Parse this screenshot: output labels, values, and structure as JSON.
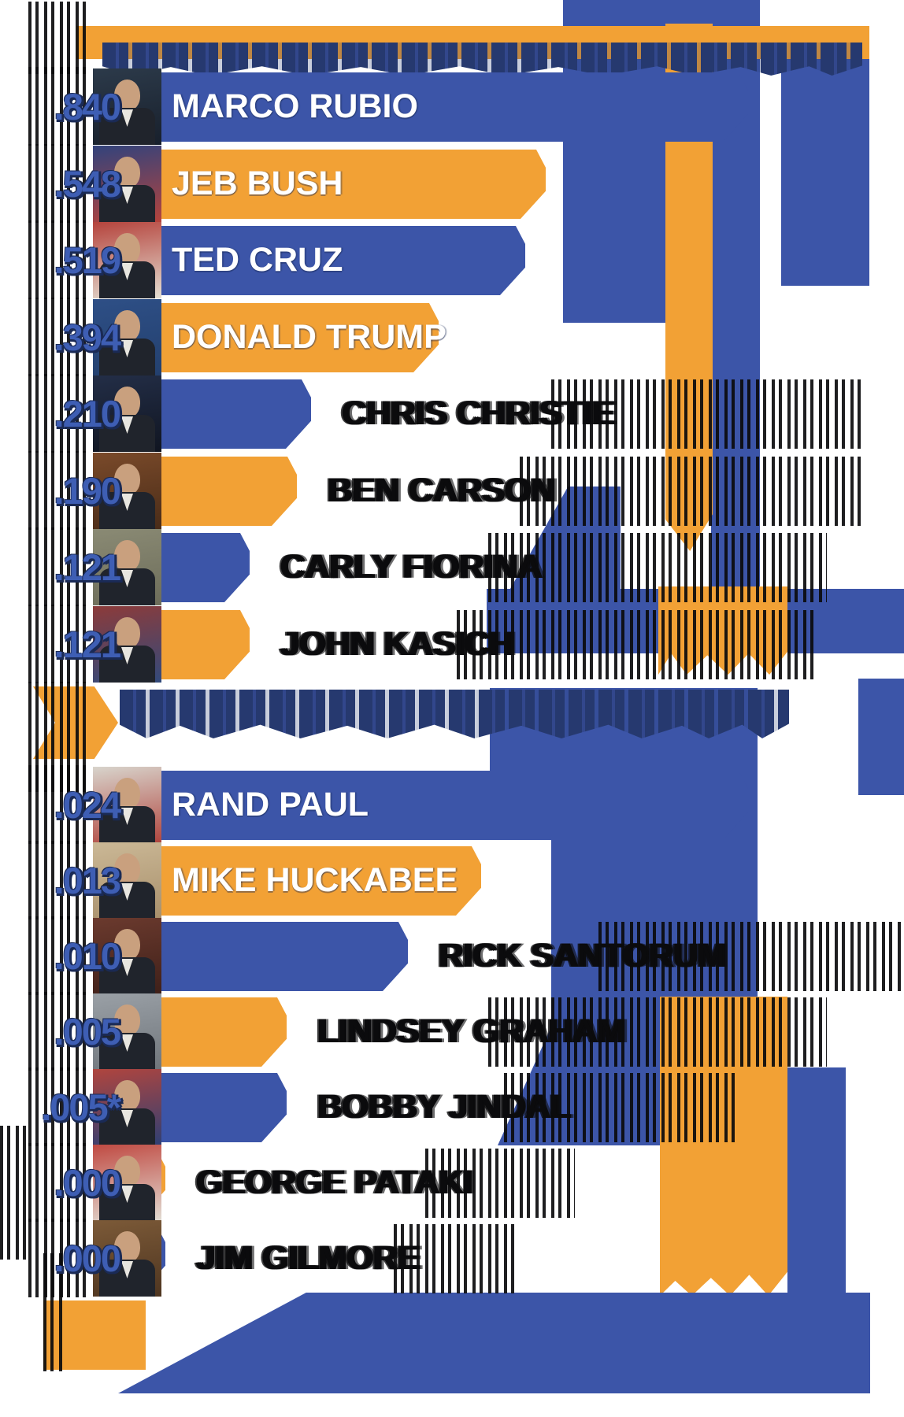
{
  "colors": {
    "accent_orange": "#F2A135",
    "bar_blue": "#3C55A8",
    "value_text_blue": "#3E5EB4",
    "value_outline_navy": "#1A2A55",
    "garbled_text_navy": "#26396F",
    "outside_name_black": "#0B0B0D",
    "inside_name_white": "#FFFFFF",
    "background": "#FFFFFF"
  },
  "garbled_text_regions": [
    "title-banner-text",
    "section-divider-text",
    "footer-text"
  ],
  "sections": [
    {
      "rows": [
        {
          "value_label": ".840",
          "value": 0.84,
          "name": "MARCO RUBIO",
          "bar": "blue",
          "label": "inside",
          "photo_bg": [
            "#2c3a4a",
            "#18202c"
          ]
        },
        {
          "value_label": ".548",
          "value": 0.548,
          "name": "JEB BUSH",
          "bar": "orange",
          "label": "inside",
          "photo_bg": [
            "#32437c",
            "#b5433c"
          ]
        },
        {
          "value_label": ".519",
          "value": 0.519,
          "name": "TED CRUZ",
          "bar": "blue",
          "label": "inside",
          "photo_bg": [
            "#b5433c",
            "#e4ded2"
          ]
        },
        {
          "value_label": ".394",
          "value": 0.394,
          "name": "DONALD TRUMP",
          "bar": "orange",
          "label": "inside",
          "photo_bg": [
            "#2e4f86",
            "#23406e"
          ]
        },
        {
          "value_label": ".210",
          "value": 0.21,
          "name": "CHRIS CHRISTIE",
          "bar": "blue",
          "label": "outside",
          "photo_bg": [
            "#232e47",
            "#101521"
          ]
        },
        {
          "value_label": ".190",
          "value": 0.19,
          "name": "BEN CARSON",
          "bar": "orange",
          "label": "outside",
          "photo_bg": [
            "#7a4a2a",
            "#4a2c18"
          ]
        },
        {
          "value_label": ".121",
          "value": 0.121,
          "name": "CARLY FIORINA",
          "bar": "blue",
          "label": "outside",
          "photo_bg": [
            "#8a8a74",
            "#6d6d5a"
          ]
        },
        {
          "value_label": ".121",
          "value": 0.121,
          "name": "JOHN KASICH",
          "bar": "orange",
          "label": "outside",
          "photo_bg": [
            "#8c3b3a",
            "#324a7c"
          ]
        }
      ]
    },
    {
      "rows": [
        {
          "value_label": ".024",
          "value": 0.024,
          "name": "RAND PAUL",
          "bar": "blue",
          "label": "inside",
          "photo_bg": [
            "#d8d4cc",
            "#b0453e"
          ]
        },
        {
          "value_label": ".013",
          "value": 0.013,
          "name": "MIKE HUCKABEE",
          "bar": "orange",
          "label": "inside",
          "photo_bg": [
            "#cbb896",
            "#a8906c"
          ]
        },
        {
          "value_label": ".010",
          "value": 0.01,
          "name": "RICK SANTORUM",
          "bar": "blue",
          "label": "outside",
          "photo_bg": [
            "#6b3a2e",
            "#3f2019"
          ]
        },
        {
          "value_label": ".005",
          "value": 0.005,
          "name": "LINDSEY GRAHAM",
          "bar": "orange",
          "label": "outside",
          "photo_bg": [
            "#9aa0a6",
            "#70767c"
          ]
        },
        {
          "value_label": ".005*",
          "value": 0.005,
          "name": "BOBBY JINDAL",
          "bar": "blue",
          "label": "outside",
          "photo_bg": [
            "#b0453e",
            "#2e3f74"
          ]
        },
        {
          "value_label": ".000",
          "value": 0.0,
          "name": "GEORGE PATAKI",
          "bar": "orange",
          "label": "outside",
          "photo_bg": [
            "#c04a42",
            "#e2ddd4"
          ]
        },
        {
          "value_label": ".000",
          "value": 0.0,
          "name": "JIM GILMORE",
          "bar": "blue",
          "label": "outside",
          "photo_bg": [
            "#7c5a38",
            "#4e3520"
          ]
        }
      ]
    }
  ],
  "chart_data": {
    "type": "bar",
    "orientation": "horizontal",
    "categories": [
      "MARCO RUBIO",
      "JEB BUSH",
      "TED CRUZ",
      "DONALD TRUMP",
      "CHRIS CHRISTIE",
      "BEN CARSON",
      "CARLY FIORINA",
      "JOHN KASICH",
      "RAND PAUL",
      "MIKE HUCKABEE",
      "RICK SANTORUM",
      "LINDSEY GRAHAM",
      "BOBBY JINDAL",
      "GEORGE PATAKI",
      "JIM GILMORE"
    ],
    "values": [
      0.84,
      0.548,
      0.519,
      0.394,
      0.21,
      0.19,
      0.121,
      0.121,
      0.024,
      0.013,
      0.01,
      0.005,
      0.005,
      0.0,
      0.0
    ],
    "value_labels": [
      ".840",
      ".548",
      ".519",
      ".394",
      ".210",
      ".190",
      ".121",
      ".121",
      ".024",
      ".013",
      ".010",
      ".005",
      ".005*",
      ".000",
      ".000"
    ],
    "groups": [
      {
        "rows": [
          0,
          1,
          2,
          3,
          4,
          5,
          6,
          7
        ],
        "scale_max": 0.84
      },
      {
        "rows": [
          8,
          9,
          10,
          11,
          12,
          13,
          14
        ],
        "scale_max": 0.024
      }
    ],
    "bar_colors_alternate": [
      "#3C55A8",
      "#F2A135"
    ],
    "xlim": [
      0,
      0.84
    ],
    "grid": false,
    "legend": false
  }
}
